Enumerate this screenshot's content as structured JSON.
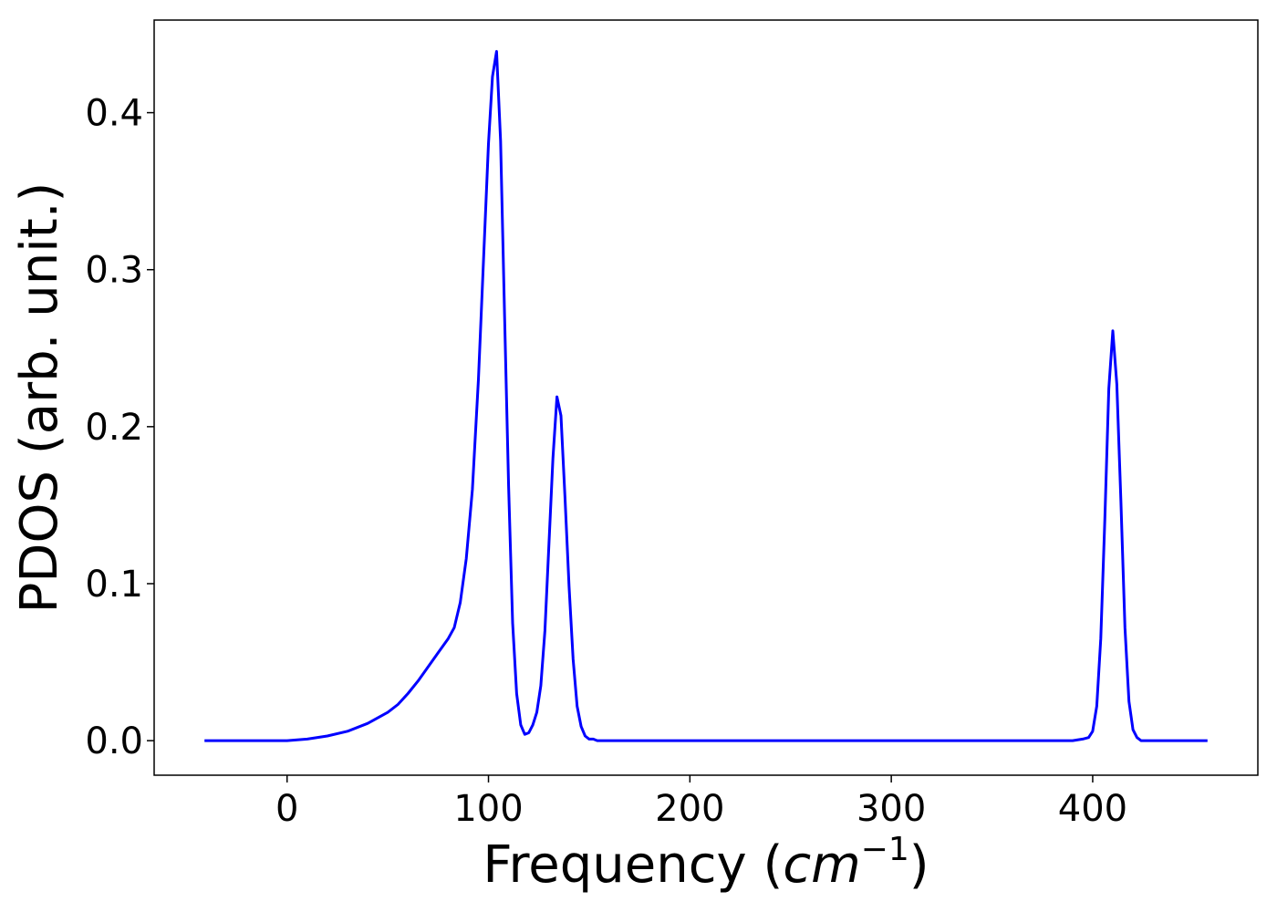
{
  "chart_data": {
    "type": "line",
    "title": "",
    "xlabel": "Frequency",
    "xlabel_unit_base": "cm",
    "xlabel_unit_exp": "−1",
    "ylabel": "PDOS (arb. unit.)",
    "xlim": [
      -66,
      482
    ],
    "ylim": [
      -0.022,
      0.459
    ],
    "xticks": [
      0,
      100,
      200,
      300,
      400
    ],
    "yticks": [
      0.0,
      0.1,
      0.2,
      0.3,
      0.4
    ],
    "ytick_labels": [
      "0.0",
      "0.1",
      "0.2",
      "0.3",
      "0.4"
    ],
    "grid": false,
    "legend": "none",
    "series": [
      {
        "color": "#0000ff",
        "x": [
          -41,
          -20,
          0,
          10,
          20,
          30,
          40,
          50,
          55,
          60,
          65,
          70,
          75,
          80,
          83,
          86,
          89,
          92,
          95,
          98,
          100,
          102,
          104,
          106,
          108,
          110,
          112,
          114,
          116,
          118,
          120,
          122,
          124,
          126,
          128,
          130,
          132,
          134,
          136,
          138,
          140,
          142,
          144,
          146,
          148,
          150,
          152,
          154,
          156,
          158,
          160,
          165,
          200,
          300,
          390,
          395,
          398,
          400,
          402,
          404,
          406,
          408,
          410,
          412,
          414,
          416,
          418,
          420,
          422,
          424,
          426,
          428,
          430,
          435,
          457
        ],
        "y": [
          0,
          0,
          0,
          0.001,
          0.003,
          0.006,
          0.011,
          0.018,
          0.023,
          0.03,
          0.038,
          0.047,
          0.056,
          0.065,
          0.072,
          0.088,
          0.116,
          0.16,
          0.23,
          0.32,
          0.38,
          0.423,
          0.439,
          0.382,
          0.27,
          0.162,
          0.075,
          0.03,
          0.01,
          0.004,
          0.005,
          0.01,
          0.018,
          0.035,
          0.07,
          0.125,
          0.18,
          0.219,
          0.207,
          0.155,
          0.098,
          0.052,
          0.022,
          0.009,
          0.003,
          0.001,
          0.001,
          0,
          0,
          0,
          0,
          0,
          0,
          0,
          0,
          0.001,
          0.002,
          0.006,
          0.022,
          0.065,
          0.14,
          0.224,
          0.261,
          0.227,
          0.152,
          0.072,
          0.025,
          0.007,
          0.002,
          0,
          0,
          0,
          0,
          0,
          0
        ]
      }
    ]
  }
}
